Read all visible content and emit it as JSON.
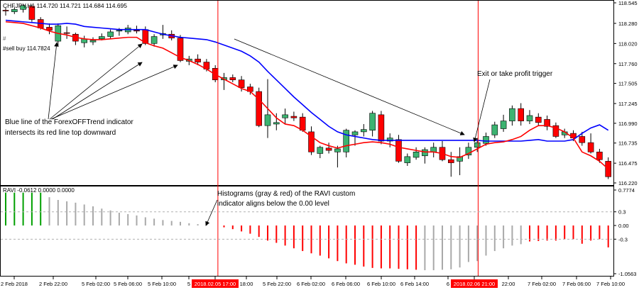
{
  "colors": {
    "background": "#ffffff",
    "frame": "#000000",
    "bull_candle": "#3cb371",
    "bear_candle": "#ff0000",
    "blue_line": "#0000ff",
    "red_line": "#ff0000",
    "vline": "#ff0000",
    "hist_gray": "#a9a9a9",
    "hist_red": "#ff0000",
    "hist_green": "#00a000",
    "level_line": "#b0b0b0",
    "time_highlight_bg": "#ff0000",
    "time_highlight_text": "#ffffff"
  },
  "header": {
    "symbol_info": "CHFJPY,H1  114.720 114.721 114.684 114.695",
    "order_label": "#",
    "buy_label": "#sell buy 114.7824"
  },
  "annotations": {
    "blue_cross": [
      "Blue line of the ForexOFFTrend indicator",
      "intersects its red line top downward"
    ],
    "exit": "Exit or take profit trigger",
    "histogram": [
      "Histograms (gray & red) of the RAVI custom",
      "indicator aligns below the 0.00 level"
    ]
  },
  "chart_data": [
    {
      "type": "candlestick",
      "title": "CHFJPY,H1",
      "ohlc_header": [
        114.72,
        114.721,
        114.684,
        114.695
      ],
      "ylim": [
        116.22,
        118.545
      ],
      "y_ticks": [
        "118.545",
        "118.280",
        "118.020",
        "117.760",
        "117.505",
        "117.245",
        "116.990",
        "116.735",
        "116.475",
        "116.220"
      ],
      "candles": [
        [
          118.45,
          118.48,
          118.38,
          118.44
        ],
        [
          118.43,
          118.49,
          118.4,
          118.46
        ],
        [
          118.46,
          118.53,
          118.42,
          118.51
        ],
        [
          118.5,
          118.52,
          118.3,
          118.33
        ],
        [
          118.33,
          118.36,
          118.2,
          118.22
        ],
        [
          118.23,
          118.28,
          118.14,
          118.19
        ],
        [
          118.05,
          118.28,
          117.98,
          118.25
        ],
        [
          118.16,
          118.24,
          118.08,
          118.15
        ],
        [
          118.14,
          118.16,
          118.0,
          118.05
        ],
        [
          118.03,
          118.12,
          117.97,
          118.08
        ],
        [
          118.04,
          118.1,
          118.0,
          118.06
        ],
        [
          118.08,
          118.15,
          118.06,
          118.11
        ],
        [
          118.11,
          118.2,
          118.08,
          118.17
        ],
        [
          118.18,
          118.22,
          118.12,
          118.19
        ],
        [
          118.17,
          118.26,
          118.14,
          118.22
        ],
        [
          118.19,
          118.25,
          118.15,
          118.18
        ],
        [
          118.2,
          118.24,
          118.0,
          118.02
        ],
        [
          118.02,
          118.14,
          117.98,
          118.11
        ],
        [
          118.13,
          118.26,
          118.08,
          118.15
        ],
        [
          118.14,
          118.19,
          118.06,
          118.09
        ],
        [
          118.09,
          118.13,
          117.78,
          117.8
        ],
        [
          117.79,
          117.86,
          117.74,
          117.82
        ],
        [
          117.82,
          117.88,
          117.74,
          117.78
        ],
        [
          117.78,
          117.82,
          117.66,
          117.69
        ],
        [
          117.7,
          117.74,
          117.52,
          117.55
        ],
        [
          117.55,
          117.64,
          117.42,
          117.58
        ],
        [
          117.58,
          117.62,
          117.52,
          117.55
        ],
        [
          117.55,
          117.6,
          117.4,
          117.45
        ],
        [
          117.46,
          117.5,
          117.36,
          117.4
        ],
        [
          117.4,
          117.45,
          116.94,
          116.96
        ],
        [
          116.96,
          117.56,
          116.8,
          117.1
        ],
        [
          116.98,
          117.12,
          116.9,
          117.0
        ],
        [
          117.06,
          117.18,
          116.98,
          117.1
        ],
        [
          117.08,
          117.14,
          117.02,
          117.06
        ],
        [
          117.07,
          117.12,
          116.88,
          116.9
        ],
        [
          116.88,
          116.95,
          116.58,
          116.62
        ],
        [
          116.6,
          116.7,
          116.54,
          116.68
        ],
        [
          116.67,
          116.74,
          116.6,
          116.64
        ],
        [
          116.62,
          116.7,
          116.42,
          116.66
        ],
        [
          116.62,
          116.92,
          116.55,
          116.9
        ],
        [
          116.84,
          116.9,
          116.7,
          116.88
        ],
        [
          116.88,
          116.98,
          116.82,
          116.91
        ],
        [
          116.9,
          117.15,
          116.82,
          117.12
        ],
        [
          117.1,
          117.15,
          116.72,
          116.76
        ],
        [
          116.76,
          116.86,
          116.68,
          116.8
        ],
        [
          116.78,
          116.84,
          116.48,
          116.5
        ],
        [
          116.48,
          116.6,
          116.44,
          116.56
        ],
        [
          116.55,
          116.68,
          116.52,
          116.62
        ],
        [
          116.57,
          116.68,
          116.47,
          116.65
        ],
        [
          116.62,
          116.74,
          116.55,
          116.68
        ],
        [
          116.68,
          116.76,
          116.5,
          116.52
        ],
        [
          116.52,
          116.62,
          116.3,
          116.48
        ],
        [
          116.5,
          116.68,
          116.32,
          116.56
        ],
        [
          116.58,
          116.74,
          116.53,
          116.68
        ],
        [
          116.68,
          116.8,
          116.62,
          116.74
        ],
        [
          116.73,
          116.87,
          116.7,
          116.82
        ],
        [
          116.84,
          117.01,
          116.8,
          116.97
        ],
        [
          116.92,
          117.1,
          116.88,
          117.02
        ],
        [
          117.02,
          117.22,
          116.96,
          117.18
        ],
        [
          117.18,
          117.25,
          116.96,
          117.02
        ],
        [
          117.02,
          117.16,
          116.98,
          117.09
        ],
        [
          117.07,
          117.12,
          116.96,
          117.0
        ],
        [
          117.04,
          117.09,
          116.9,
          116.95
        ],
        [
          116.96,
          117.0,
          116.8,
          116.82
        ],
        [
          116.84,
          116.92,
          116.8,
          116.88
        ],
        [
          116.86,
          116.9,
          116.76,
          116.8
        ],
        [
          116.82,
          116.88,
          116.7,
          116.74
        ],
        [
          116.74,
          116.86,
          116.6,
          116.62
        ],
        [
          116.62,
          116.66,
          116.48,
          116.52
        ],
        [
          116.5,
          116.55,
          116.27,
          116.3
        ]
      ],
      "series": [
        {
          "name": "blue",
          "values": [
            118.32,
            118.31,
            118.3,
            118.29,
            118.28,
            118.27,
            118.27,
            118.28,
            118.27,
            118.24,
            118.23,
            118.22,
            118.21,
            118.2,
            118.2,
            118.2,
            118.2,
            118.17,
            118.14,
            118.12,
            118.1,
            118.09,
            118.08,
            118.07,
            118.04,
            118.0,
            117.96,
            117.92,
            117.86,
            117.78,
            117.66,
            117.55,
            117.44,
            117.33,
            117.23,
            117.13,
            117.04,
            116.95,
            116.88,
            116.84,
            116.82,
            116.8,
            116.78,
            116.77,
            116.77,
            116.77,
            116.77,
            116.77,
            116.77,
            116.77,
            116.77,
            116.77,
            116.77,
            116.77,
            116.77,
            116.76,
            116.76,
            116.76,
            116.76,
            116.76,
            116.77,
            116.78,
            116.76,
            116.76,
            116.76,
            116.78,
            116.86,
            116.93,
            116.97,
            116.9
          ]
        },
        {
          "name": "red",
          "values": [
            118.3,
            118.29,
            118.28,
            118.25,
            118.22,
            118.18,
            118.15,
            118.13,
            118.1,
            118.08,
            118.07,
            118.07,
            118.08,
            118.09,
            118.1,
            118.1,
            118.03,
            117.99,
            117.96,
            117.9,
            117.84,
            117.8,
            117.75,
            117.69,
            117.62,
            117.56,
            117.5,
            117.44,
            117.4,
            117.3,
            117.18,
            117.06,
            116.98,
            116.96,
            116.9,
            116.82,
            116.74,
            116.7,
            116.67,
            116.7,
            116.72,
            116.74,
            116.75,
            116.74,
            116.72,
            116.68,
            116.66,
            116.64,
            116.62,
            116.62,
            116.6,
            116.56,
            116.55,
            116.6,
            116.66,
            116.72,
            116.74,
            116.75,
            116.78,
            116.82,
            116.9,
            116.96,
            116.96,
            116.93,
            116.88,
            116.8,
            116.62,
            116.57,
            116.5,
            116.4
          ]
        }
      ]
    },
    {
      "type": "bar",
      "title": "RAVI -0.0612 0.0000 0.0000",
      "ylim": [
        -1.0563,
        0.7774
      ],
      "y_ticks": [
        "0.7774",
        "0.3",
        "0.00",
        "-0.3",
        "-1.0563"
      ],
      "levels": [
        0.3,
        -0.3
      ],
      "values": [
        0.72,
        0.72,
        0.72,
        0.72,
        0.72,
        0.62,
        0.56,
        0.53,
        0.5,
        0.46,
        0.42,
        0.37,
        0.33,
        0.28,
        0.25,
        0.22,
        0.18,
        0.15,
        0.12,
        0.1,
        0.08,
        0.05,
        0.03,
        0.02,
        0.0,
        -0.04,
        -0.08,
        -0.13,
        -0.18,
        -0.25,
        -0.33,
        -0.38,
        -0.44,
        -0.5,
        -0.56,
        -0.61,
        -0.66,
        -0.72,
        -0.78,
        -0.83,
        -0.86,
        -0.9,
        -0.93,
        -0.94,
        -0.94,
        -0.95,
        -0.96,
        -0.97,
        -0.98,
        -0.98,
        -0.97,
        -0.96,
        -0.92,
        -0.8,
        -0.78,
        -0.66,
        -0.56,
        -0.5,
        -0.44,
        -0.41,
        -0.35,
        -0.34,
        -0.33,
        -0.33,
        -0.3,
        -0.3,
        -0.4,
        -0.33,
        -0.3,
        -0.48
      ],
      "colors": [
        "g",
        "g",
        "g",
        "g",
        "g",
        "k",
        "k",
        "k",
        "k",
        "k",
        "k",
        "k",
        "k",
        "k",
        "k",
        "k",
        "k",
        "k",
        "k",
        "k",
        "k",
        "k",
        "k",
        "k",
        "k",
        "r",
        "r",
        "r",
        "r",
        "r",
        "r",
        "r",
        "r",
        "r",
        "r",
        "r",
        "r",
        "r",
        "r",
        "r",
        "r",
        "r",
        "r",
        "r",
        "r",
        "r",
        "r",
        "r",
        "k",
        "k",
        "k",
        "k",
        "k",
        "k",
        "k",
        "k",
        "k",
        "k",
        "k",
        "k",
        "r",
        "r",
        "r",
        "r",
        "r",
        "r",
        "r",
        "r",
        "r",
        "r"
      ]
    }
  ],
  "x_axis": {
    "labels": [
      "2 Feb 2018",
      "2 Feb 22:00",
      "5 Feb 02:00",
      "5 Feb 06:00",
      "5 Feb 10:00",
      "5",
      "2018.02.05 17:00",
      "18:00",
      "5 Feb 22:00",
      "6 Feb 02:00",
      "6 Feb 06:00",
      "6 Feb 10:00",
      "6 Feb 14:00",
      "6",
      "2018.02.06 21:00",
      "22:00",
      "7 Feb 02:00",
      "7 Feb 06:00",
      "7 Feb 10:00"
    ],
    "highlighted": [
      "2018.02.05 17:00",
      "2018.02.06 21:00"
    ]
  }
}
